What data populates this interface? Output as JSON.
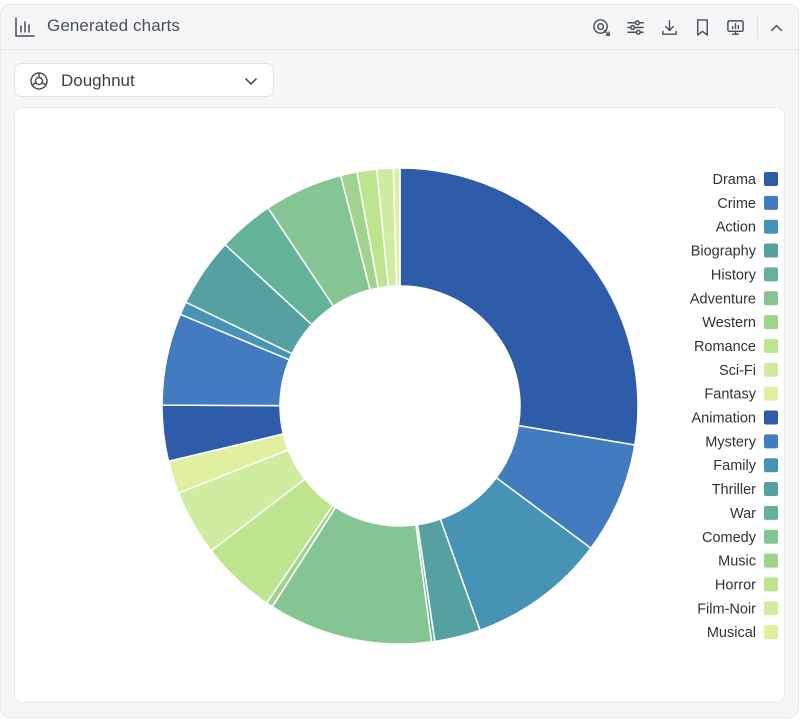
{
  "header": {
    "title": "Generated charts"
  },
  "toolbar": {
    "icons": [
      "chart-settings-icon",
      "filter-sliders-icon",
      "download-icon",
      "bookmark-icon",
      "presentation-icon",
      "collapse-icon"
    ]
  },
  "chart_selector": {
    "value": "Doughnut",
    "icon": "doughnut-chart-icon"
  },
  "chart_data": {
    "type": "doughnut",
    "legend_position": "right",
    "categories": [
      "Drama",
      "Crime",
      "Action",
      "Biography",
      "History",
      "Adventure",
      "Western",
      "Romance",
      "Sci-Fi",
      "Fantasy",
      "Animation",
      "Mystery",
      "Family",
      "Thriller",
      "War",
      "Comedy",
      "Music",
      "Horror",
      "Film-Noir",
      "Musical"
    ],
    "colors": [
      "#2e5ca8",
      "#427bbf",
      "#4693b5",
      "#55a0a0",
      "#64b298",
      "#85c593",
      "#a0d48c",
      "#bde58f",
      "#d0eca0",
      "#e0f0a0",
      "#2e5ca8",
      "#427bbf",
      "#4693b5",
      "#55a0a0",
      "#64b298",
      "#85c593",
      "#a0d48c",
      "#bde58f",
      "#d0eca0",
      "#e0f0a0"
    ],
    "values": [
      124,
      34,
      42,
      14,
      1,
      50,
      2,
      23,
      20,
      10,
      17,
      28,
      4,
      21,
      17,
      24,
      5,
      6,
      5,
      2
    ],
    "percent_labels": []
  }
}
